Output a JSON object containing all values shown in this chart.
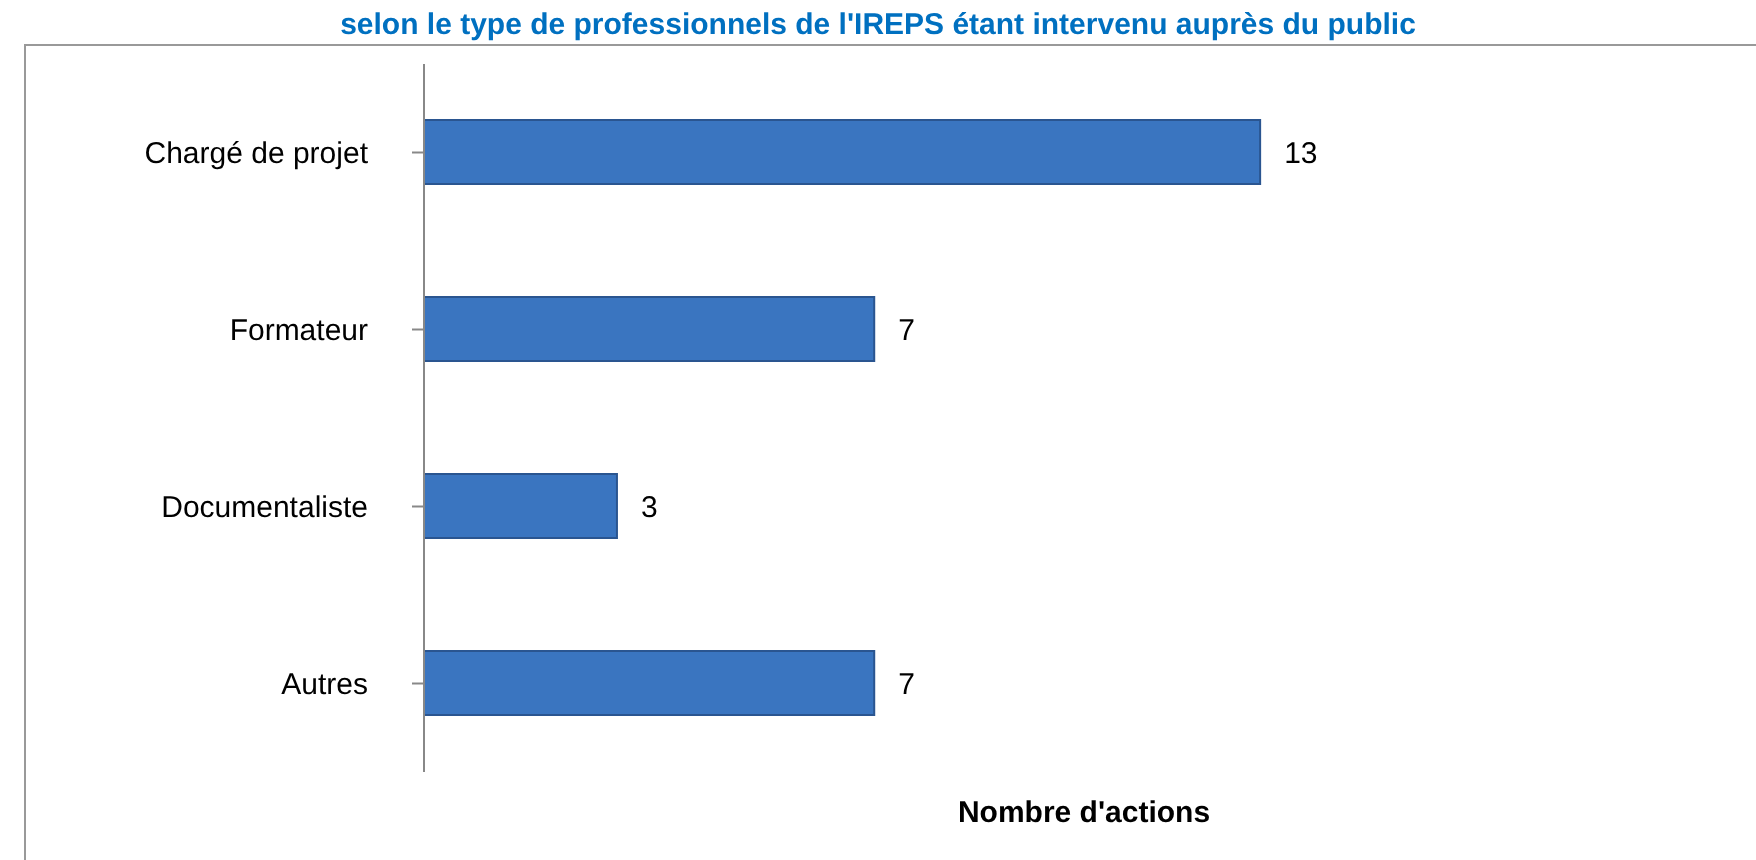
{
  "chart_data": {
    "type": "bar",
    "orientation": "horizontal",
    "title": "selon le type de professionnels de l'IREPS étant intervenu auprès du public",
    "xlabel": "Nombre d'actions",
    "categories": [
      "Chargé de projet",
      "Formateur",
      "Documentaliste",
      "Autres"
    ],
    "values": [
      13,
      7,
      3,
      7
    ],
    "color": "#3a75c0",
    "data_labels": true
  }
}
